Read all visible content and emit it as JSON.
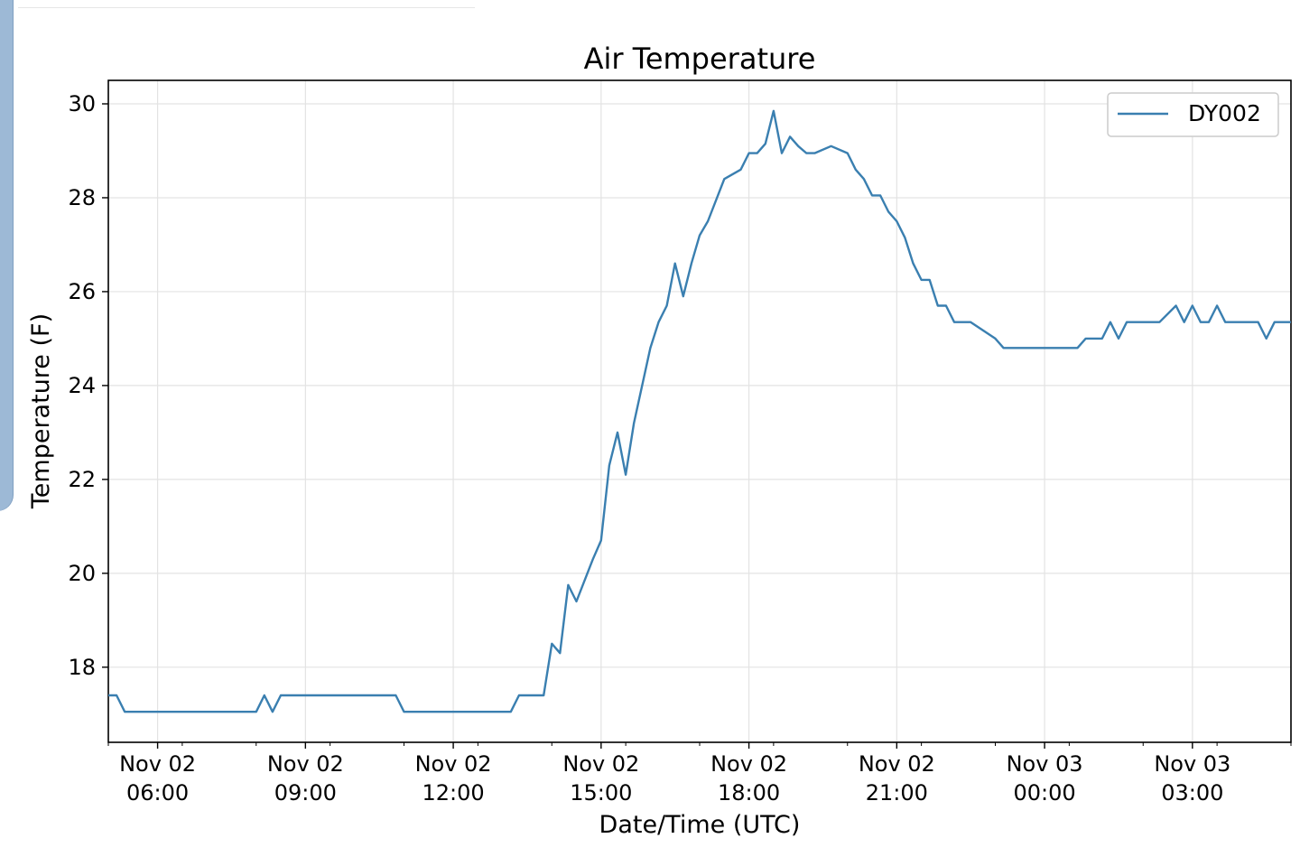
{
  "chart_data": {
    "type": "line",
    "title": "Air Temperature",
    "xlabel": "Date/Time (UTC)",
    "ylabel": "Temperature (F)",
    "ylim": [
      16.4,
      30.5
    ],
    "yticks": [
      18,
      20,
      22,
      24,
      26,
      28,
      30
    ],
    "grid": true,
    "legend_position": "top-right",
    "xticks": [
      {
        "date": "Nov 02",
        "time": "06:00",
        "t": "2020-11-02T06:00"
      },
      {
        "date": "Nov 02",
        "time": "09:00",
        "t": "2020-11-02T09:00"
      },
      {
        "date": "Nov 02",
        "time": "12:00",
        "t": "2020-11-02T12:00"
      },
      {
        "date": "Nov 02",
        "time": "15:00",
        "t": "2020-11-02T15:00"
      },
      {
        "date": "Nov 02",
        "time": "18:00",
        "t": "2020-11-02T18:00"
      },
      {
        "date": "Nov 02",
        "time": "21:00",
        "t": "2020-11-02T21:00"
      },
      {
        "date": "Nov 03",
        "time": "00:00",
        "t": "2020-11-03T00:00"
      },
      {
        "date": "Nov 03",
        "time": "03:00",
        "t": "2020-11-03T03:00"
      }
    ],
    "xlim": [
      "2020-11-02T05:00",
      "2020-11-03T05:00"
    ],
    "series": [
      {
        "name": "DY002",
        "color": "#3a7fb0",
        "x": [
          "2020-11-02T05:00",
          "2020-11-02T05:10",
          "2020-11-02T05:20",
          "2020-11-02T08:00",
          "2020-11-02T08:10",
          "2020-11-02T08:20",
          "2020-11-02T08:30",
          "2020-11-02T10:50",
          "2020-11-02T11:00",
          "2020-11-02T13:10",
          "2020-11-02T13:20",
          "2020-11-02T13:50",
          "2020-11-02T14:00",
          "2020-11-02T14:10",
          "2020-11-02T14:20",
          "2020-11-02T14:30",
          "2020-11-02T14:50",
          "2020-11-02T15:00",
          "2020-11-02T15:10",
          "2020-11-02T15:20",
          "2020-11-02T15:30",
          "2020-11-02T15:40",
          "2020-11-02T15:50",
          "2020-11-02T16:00",
          "2020-11-02T16:10",
          "2020-11-02T16:20",
          "2020-11-02T16:30",
          "2020-11-02T16:40",
          "2020-11-02T16:50",
          "2020-11-02T17:00",
          "2020-11-02T17:10",
          "2020-11-02T17:30",
          "2020-11-02T17:50",
          "2020-11-02T18:00",
          "2020-11-02T18:10",
          "2020-11-02T18:20",
          "2020-11-02T18:30",
          "2020-11-02T18:40",
          "2020-11-02T18:50",
          "2020-11-02T19:00",
          "2020-11-02T19:10",
          "2020-11-02T19:20",
          "2020-11-02T19:40",
          "2020-11-02T20:00",
          "2020-11-02T20:10",
          "2020-11-02T20:20",
          "2020-11-02T20:30",
          "2020-11-02T20:40",
          "2020-11-02T20:50",
          "2020-11-02T21:00",
          "2020-11-02T21:10",
          "2020-11-02T21:20",
          "2020-11-02T21:30",
          "2020-11-02T21:40",
          "2020-11-02T21:50",
          "2020-11-02T22:00",
          "2020-11-02T22:10",
          "2020-11-02T22:20",
          "2020-11-02T22:30",
          "2020-11-02T23:00",
          "2020-11-02T23:10",
          "2020-11-02T23:20",
          "2020-11-03T00:40",
          "2020-11-03T00:50",
          "2020-11-03T01:10",
          "2020-11-03T01:20",
          "2020-11-03T01:30",
          "2020-11-03T01:40",
          "2020-11-03T02:20",
          "2020-11-03T02:40",
          "2020-11-03T02:50",
          "2020-11-03T03:00",
          "2020-11-03T03:10",
          "2020-11-03T03:20",
          "2020-11-03T03:30",
          "2020-11-03T03:40",
          "2020-11-03T04:20",
          "2020-11-03T04:30",
          "2020-11-03T04:40",
          "2020-11-03T05:00"
        ],
        "values": [
          17.4,
          17.4,
          17.05,
          17.05,
          17.4,
          17.05,
          17.4,
          17.4,
          17.05,
          17.05,
          17.4,
          17.4,
          18.5,
          18.3,
          19.75,
          19.4,
          20.3,
          20.7,
          22.3,
          23.0,
          22.1,
          23.2,
          24.0,
          24.8,
          25.35,
          25.7,
          26.6,
          25.9,
          26.6,
          27.2,
          27.5,
          28.4,
          28.6,
          28.95,
          28.95,
          29.15,
          29.85,
          28.95,
          29.3,
          29.1,
          28.95,
          28.95,
          29.1,
          28.95,
          28.6,
          28.4,
          28.05,
          28.05,
          27.7,
          27.5,
          27.15,
          26.6,
          26.25,
          26.25,
          25.7,
          25.7,
          25.35,
          25.35,
          25.35,
          25.0,
          24.8,
          24.8,
          24.8,
          25.0,
          25.0,
          25.35,
          25.0,
          25.35,
          25.35,
          25.7,
          25.35,
          25.7,
          25.35,
          25.35,
          25.7,
          25.35,
          25.35,
          25.0,
          25.35,
          25.35
        ]
      }
    ]
  }
}
